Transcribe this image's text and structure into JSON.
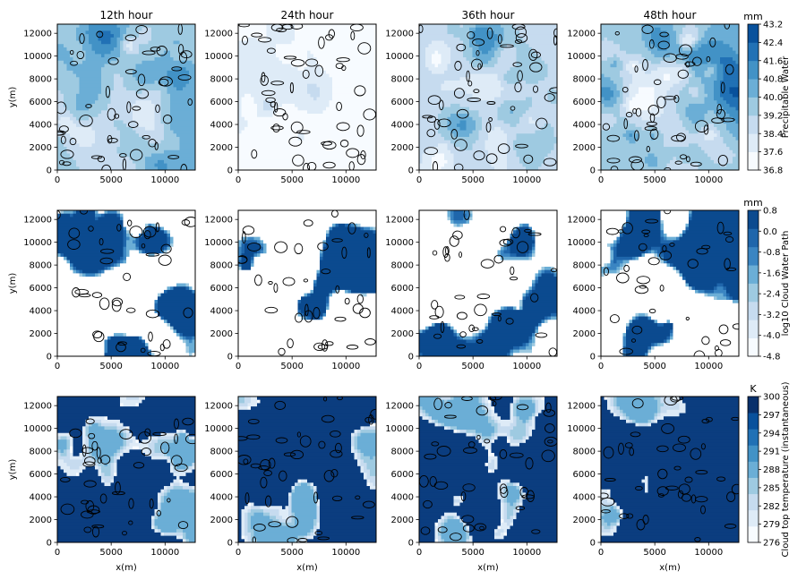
{
  "chart_data": {
    "type": "heatmap",
    "grid": false,
    "column_titles": [
      "12th hour",
      "24th hour",
      "36th hour",
      "48th hour"
    ],
    "xlabel": "x(m)",
    "ylabel": "y(m)",
    "xlim": [
      0,
      12800
    ],
    "ylim": [
      0,
      12800
    ],
    "x_ticks": [
      "0",
      "5000",
      "10000"
    ],
    "y_ticks": [
      "0",
      "2000",
      "4000",
      "6000",
      "8000",
      "10000",
      "12000"
    ],
    "rows": [
      {
        "variable": "Precipitable Water",
        "unit": "mm",
        "colorbar_ticks": [
          "36.8",
          "37.6",
          "38.4",
          "39.2",
          "40.0",
          "40.8",
          "41.6",
          "42.4",
          "43.2"
        ],
        "colormap": [
          "#f7fbff",
          "#deebf7",
          "#c6dbef",
          "#9ecae1",
          "#6baed6",
          "#4292c6",
          "#2171b5",
          "#08519c"
        ],
        "panel_levels": [
          {
            "base": 0.45,
            "amp": 0.22
          },
          {
            "base": 0.12,
            "amp": 0.14
          },
          {
            "base": 0.3,
            "amp": 0.22
          },
          {
            "base": 0.5,
            "amp": 0.26
          }
        ]
      },
      {
        "variable": "log10 Cloud Water Path",
        "unit": "mm",
        "colorbar_ticks": [
          "-4.8",
          "-4.0",
          "-3.2",
          "-2.4",
          "-1.6",
          "-0.8",
          "0.0",
          "0.8"
        ],
        "colormap": [
          "#f7fbff",
          "#deebf7",
          "#c6dbef",
          "#9ecae1",
          "#6baed6",
          "#3a85c2",
          "#1f66ab",
          "#0b4a8f"
        ],
        "panel_levels": [
          {
            "cover": 0.18
          },
          {
            "cover": 0.3
          },
          {
            "cover": 0.42
          },
          {
            "cover": 0.45
          }
        ]
      },
      {
        "variable": "Cloud top temperature (instantaneous)",
        "unit": "K",
        "colorbar_ticks": [
          "276",
          "279",
          "282",
          "285",
          "288",
          "291",
          "294",
          "297",
          "300"
        ],
        "colormap": [
          "#f7fbff",
          "#deebf7",
          "#c6dbef",
          "#9ecae1",
          "#6baed6",
          "#4292c6",
          "#2171b5",
          "#08519c",
          "#08306b"
        ],
        "panel_levels": [
          {
            "cover": 0.06
          },
          {
            "cover": 0.18
          },
          {
            "cover": 0.26
          },
          {
            "cover": 0.3
          }
        ]
      }
    ]
  }
}
